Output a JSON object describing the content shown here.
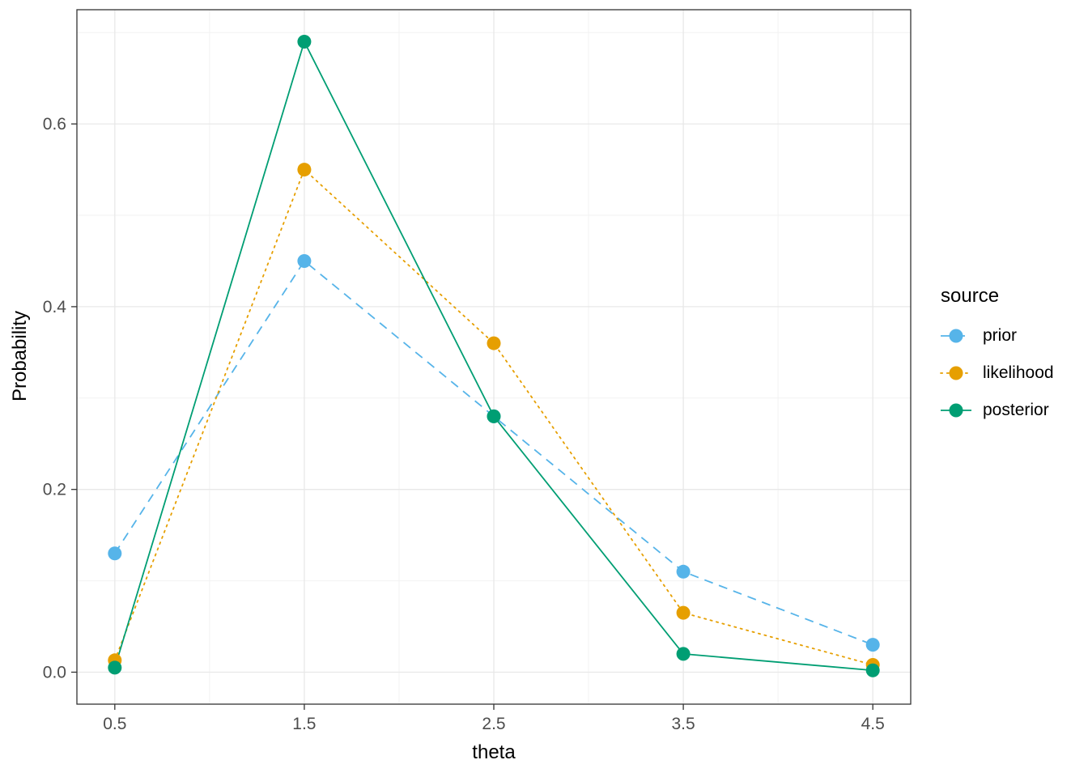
{
  "chart_data": {
    "type": "line",
    "title": "",
    "xlabel": "theta",
    "ylabel": "Probability",
    "x": [
      0.5,
      1.5,
      2.5,
      3.5,
      4.5
    ],
    "x_ticks": [
      "0.5",
      "1.5",
      "2.5",
      "3.5",
      "4.5"
    ],
    "y_tick_values": [
      0.0,
      0.2,
      0.4,
      0.6
    ],
    "y_ticks": [
      "0.0",
      "0.2",
      "0.4",
      "0.6"
    ],
    "x_minor": [
      1.0,
      2.0,
      3.0,
      4.0
    ],
    "y_minor": [
      0.1,
      0.3,
      0.5,
      0.7
    ],
    "xlim": [
      0.3,
      4.7
    ],
    "ylim": [
      -0.035,
      0.725
    ],
    "grid": true,
    "legend_position": "right",
    "legend_title": "source",
    "series": [
      {
        "name": "prior",
        "color": "#56B4E9",
        "linetype": "dashed",
        "values": [
          0.13,
          0.45,
          0.28,
          0.11,
          0.03
        ]
      },
      {
        "name": "likelihood",
        "color": "#E69F00",
        "linetype": "dotted",
        "values": [
          0.013,
          0.55,
          0.36,
          0.065,
          0.008
        ]
      },
      {
        "name": "posterior",
        "color": "#009E73",
        "linetype": "solid",
        "values": [
          0.005,
          0.69,
          0.28,
          0.02,
          0.002
        ]
      }
    ]
  }
}
